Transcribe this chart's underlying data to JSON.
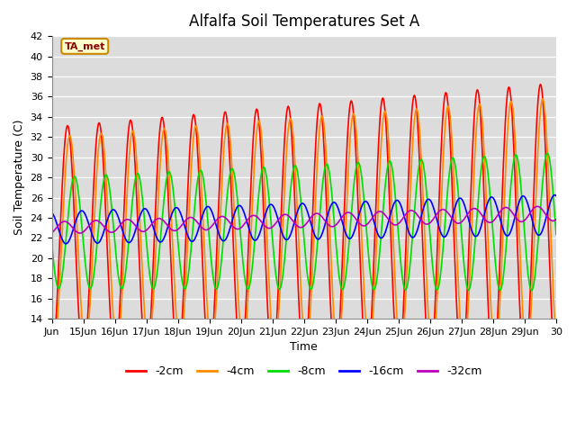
{
  "title": "Alfalfa Soil Temperatures Set A",
  "xlabel": "Time",
  "ylabel": "Soil Temperature (C)",
  "ylim": [
    14,
    42
  ],
  "total_days": 16,
  "background_color": "#ffffff",
  "axes_bg": "#dcdcdc",
  "grid_color": "#ffffff",
  "ta_met_label": "TA_met",
  "legend_labels": [
    "-2cm",
    "-4cm",
    "-8cm",
    "-16cm",
    "-32cm"
  ],
  "line_colors": [
    "#ff0000",
    "#ff8c00",
    "#00dd00",
    "#0000ff",
    "#bb00bb"
  ],
  "line_widths": [
    1.2,
    1.2,
    1.2,
    1.2,
    1.2
  ],
  "tick_label_fontsize": 8,
  "axis_label_fontsize": 9,
  "title_fontsize": 12,
  "params_2cm": [
    11.5,
    0.0,
    21.5,
    0.1
  ],
  "params_4cm": [
    10.2,
    0.07,
    21.8,
    0.09
  ],
  "params_8cm": [
    5.5,
    0.22,
    22.5,
    0.07
  ],
  "params_16cm": [
    1.6,
    0.45,
    23.0,
    0.08
  ],
  "params_32cm": [
    0.6,
    0.9,
    23.0,
    0.09
  ]
}
